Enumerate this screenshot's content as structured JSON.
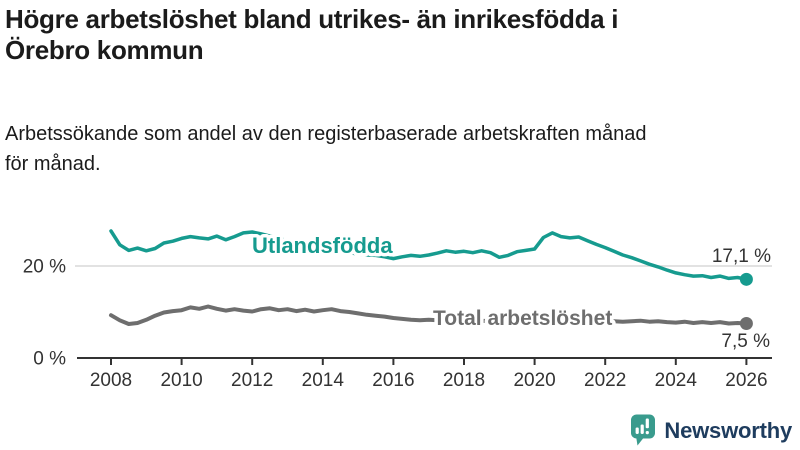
{
  "header": {
    "title": "Högre arbetslöshet bland utrikes- än inrikesfödda i Örebro kommun",
    "title_lines": [
      "Högre arbetslöshet bland utrikes- än inrikesfödda i",
      "Örebro kommun"
    ],
    "subtitle": "Arbetssökande som andel av den registerbaserade arbetskraften månad för månad.",
    "subtitle_lines": [
      "Arbetssökande som andel av den registerbaserade arbetskraften månad",
      "för månad."
    ]
  },
  "footer": {
    "brand": "Newsworthy",
    "brand_text_color": "#1e3c5e",
    "brand_icon_color": "#399b8d"
  },
  "chart_data": {
    "type": "line",
    "title": "Högre arbetslöshet bland utrikes- än inrikesfödda i Örebro kommun",
    "subtitle": "Arbetssökande som andel av den registerbaserade arbetskraften månad för månad.",
    "xlabel": "",
    "ylabel": "",
    "x_range": [
      2008,
      2026
    ],
    "ylim": [
      0,
      30
    ],
    "grid": "horizontal line at 20 % only",
    "legend_position": "inline labels on lines",
    "x_ticks": [
      2008,
      2010,
      2012,
      2014,
      2016,
      2018,
      2020,
      2022,
      2024,
      2026
    ],
    "y_ticks": [
      {
        "value": 0,
        "label": "0 %"
      },
      {
        "value": 20,
        "label": "20 %"
      }
    ],
    "x_start": 2008.0,
    "x_step": 0.25,
    "series": [
      {
        "name": "Utlandsfödda",
        "color": "#169b8f",
        "end_label": "17,1 %",
        "end_value": 17.1,
        "values": [
          27.6,
          24.6,
          23.4,
          23.9,
          23.3,
          23.8,
          25.0,
          25.4,
          26.0,
          26.4,
          26.1,
          25.9,
          26.5,
          25.7,
          26.4,
          27.2,
          27.4,
          27.0,
          26.5,
          26.0,
          25.5,
          25.0,
          24.6,
          24.2,
          23.8,
          23.5,
          23.2,
          22.9,
          22.6,
          22.4,
          22.3,
          22.0,
          21.6,
          22.0,
          22.3,
          22.1,
          22.4,
          22.8,
          23.3,
          23.0,
          23.2,
          22.9,
          23.3,
          22.9,
          21.9,
          22.3,
          23.1,
          23.4,
          23.7,
          26.2,
          27.2,
          26.4,
          26.1,
          26.3,
          25.5,
          24.7,
          24.0,
          23.2,
          22.4,
          21.8,
          21.1,
          20.4,
          19.8,
          19.1,
          18.5,
          18.1,
          17.8,
          17.9,
          17.5,
          17.8,
          17.3,
          17.5,
          17.1
        ]
      },
      {
        "name": "Total arbetslöshet",
        "color": "#6e6e6e",
        "end_label": "7,5 %",
        "end_value": 7.5,
        "values": [
          9.3,
          8.2,
          7.4,
          7.6,
          8.3,
          9.2,
          9.9,
          10.2,
          10.4,
          11.0,
          10.7,
          11.2,
          10.7,
          10.3,
          10.6,
          10.3,
          10.1,
          10.6,
          10.8,
          10.4,
          10.6,
          10.2,
          10.5,
          10.1,
          10.4,
          10.6,
          10.2,
          10.0,
          9.7,
          9.4,
          9.2,
          9.0,
          8.7,
          8.5,
          8.3,
          8.2,
          8.3,
          8.2,
          8.1,
          8.0,
          8.0,
          7.9,
          8.1,
          8.0,
          7.8,
          7.9,
          8.2,
          8.4,
          8.8,
          9.6,
          9.9,
          9.5,
          9.2,
          8.9,
          8.6,
          8.3,
          8.1,
          8.0,
          7.9,
          8.0,
          8.1,
          7.9,
          8.0,
          7.8,
          7.7,
          7.9,
          7.6,
          7.8,
          7.6,
          7.8,
          7.5,
          7.6,
          7.5
        ]
      }
    ]
  }
}
